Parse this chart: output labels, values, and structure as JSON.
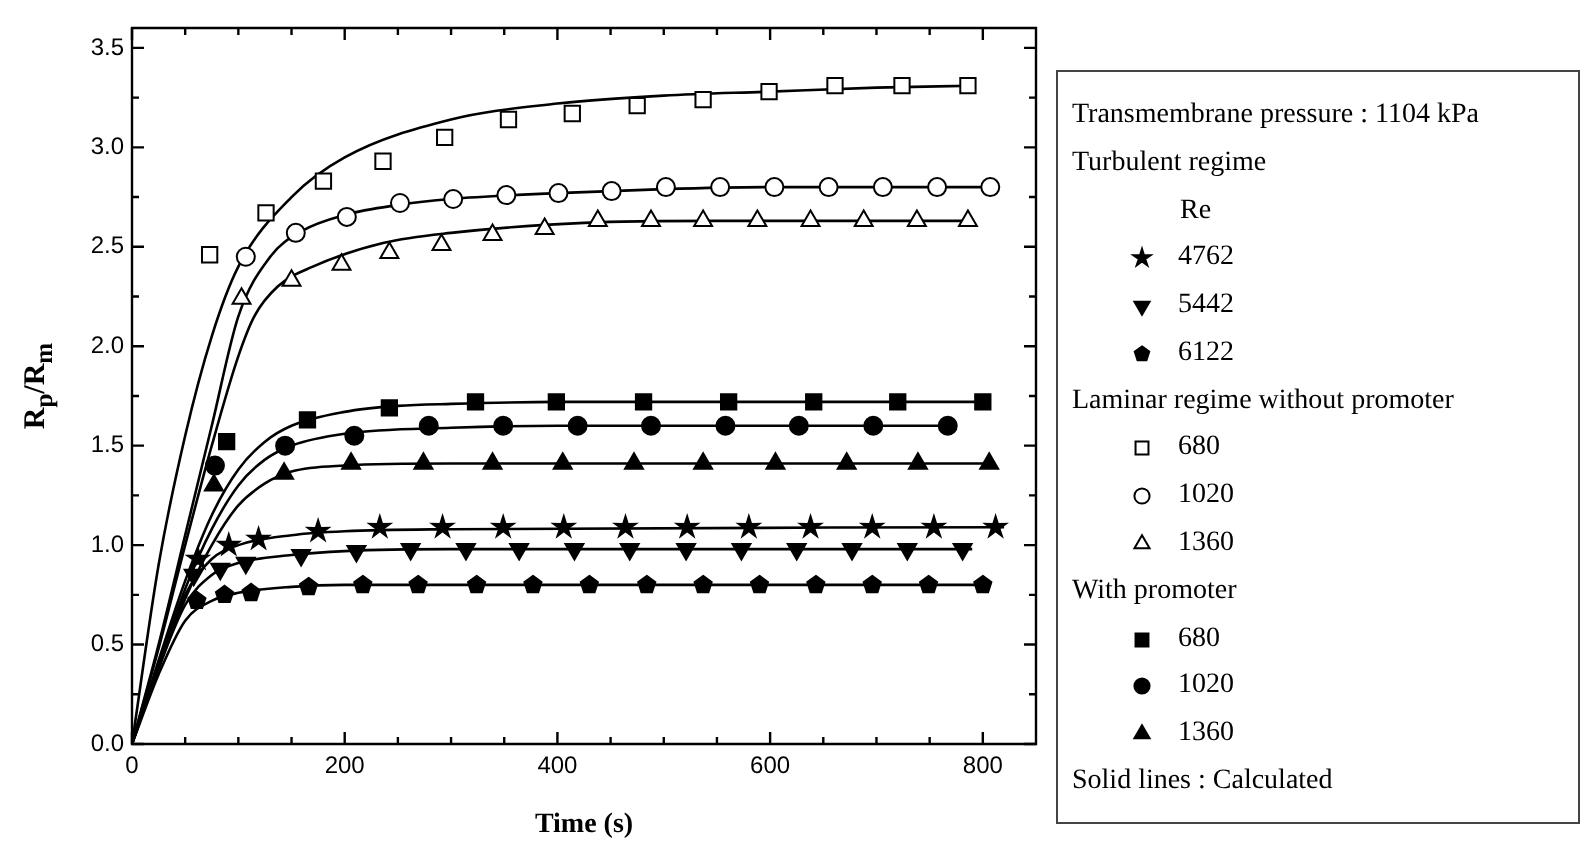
{
  "chart_data": {
    "type": "scatter",
    "xlabel": "Time (s)",
    "ylabel": "R$_{p}$/R$_{m}$",
    "legend_title": "Transmembrane pressure : 1104 kPa",
    "annotations": [
      "Turbulent regime",
      "Re",
      "Laminar regime without promoter",
      "With promoter",
      "Solid lines : Calculated"
    ],
    "xlim": [
      0,
      850
    ],
    "ylim": [
      0,
      3.6
    ],
    "xticks": [
      0,
      {
        "value": 50,
        "label": null
      },
      {
        "value": 100,
        "label": null
      },
      {
        "value": 150,
        "label": null
      },
      200,
      {
        "value": 250,
        "label": null
      },
      {
        "value": 300,
        "label": null
      },
      {
        "value": 350,
        "label": null
      },
      400,
      {
        "value": 450,
        "label": null
      },
      {
        "value": 500,
        "label": null
      },
      {
        "value": 550,
        "label": null
      },
      600,
      {
        "value": 650,
        "label": null
      },
      {
        "value": 700,
        "label": null
      },
      {
        "value": 750,
        "label": null
      },
      800
    ],
    "yticks": [
      {
        "value": 0,
        "label": "0.0"
      },
      {
        "value": 0.25,
        "label": null
      },
      {
        "value": 0.5,
        "label": "0.5"
      },
      {
        "value": 0.75,
        "label": null
      },
      {
        "value": 1,
        "label": "1.0"
      },
      {
        "value": 1.25,
        "label": null
      },
      {
        "value": 1.5,
        "label": "1.5"
      },
      {
        "value": 1.75,
        "label": null
      },
      {
        "value": 2,
        "label": "2.0"
      },
      {
        "value": 2.25,
        "label": null
      },
      {
        "value": 2.5,
        "label": "2.5"
      },
      {
        "value": 2.75,
        "label": null
      },
      {
        "value": 3,
        "label": "3.0"
      },
      {
        "value": 3.25,
        "label": null
      },
      {
        "value": 3.5,
        "label": "3.5"
      }
    ],
    "legend": "right",
    "series": [
      {
        "name": "4762",
        "marker": "star",
        "color": "#000000",
        "x": [
          62,
          91,
          119,
          175,
          233,
          292,
          349,
          406,
          464,
          522,
          580,
          638,
          696,
          754,
          812
        ],
        "values": [
          0.93,
          1.0,
          1.03,
          1.07,
          1.09,
          1.09,
          1.09,
          1.09,
          1.09,
          1.09,
          1.09,
          1.09,
          1.09,
          1.09,
          1.09
        ]
      },
      {
        "name": "5442",
        "marker": "triangle",
        "color": "#000000",
        "x": [
          58,
          83,
          107,
          159,
          211,
          262,
          314,
          364,
          416,
          468,
          521,
          573,
          625,
          677,
          729,
          781
        ],
        "values": [
          0.85,
          0.88,
          0.91,
          0.95,
          0.97,
          0.98,
          0.98,
          0.98,
          0.98,
          0.98,
          0.98,
          0.98,
          0.98,
          0.98,
          0.98,
          0.98
        ]
      },
      {
        "name": "6122",
        "color": "#000000",
        "x": [
          61,
          87,
          112,
          166,
          217,
          269,
          324,
          377,
          430,
          484,
          537,
          590,
          643,
          696,
          749,
          800
        ],
        "values": [
          0.72,
          0.75,
          0.76,
          0.79,
          0.8,
          0.8,
          0.8,
          0.8,
          0.8,
          0.8,
          0.8,
          0.8,
          0.8,
          0.8,
          0.8,
          0.8
        ]
      },
      {
        "name": "680",
        "marker": "square",
        "color": "#000000",
        "x": [
          73,
          126,
          180,
          236,
          294,
          354,
          414,
          475,
          537,
          599,
          661,
          724,
          786
        ],
        "values": [
          2.46,
          2.67,
          2.83,
          2.93,
          3.05,
          3.14,
          3.17,
          3.21,
          3.24,
          3.28,
          3.31,
          3.31,
          3.31
        ]
      },
      {
        "name": "1020",
        "marker": "circle",
        "color": "#000000",
        "x": [
          107,
          154,
          202,
          252,
          302,
          352,
          401,
          451,
          502,
          553,
          604,
          655,
          706,
          757,
          807
        ],
        "values": [
          2.45,
          2.57,
          2.65,
          2.72,
          2.74,
          2.76,
          2.77,
          2.78,
          2.8,
          2.8,
          2.8,
          2.8,
          2.8,
          2.8,
          2.8
        ]
      },
      {
        "name": "1360",
        "marker": "triangle",
        "color": "#000000",
        "x": [
          103,
          150,
          197,
          242,
          291,
          339,
          388,
          438,
          488,
          537,
          588,
          638,
          688,
          738,
          786
        ],
        "values": [
          2.24,
          2.33,
          2.41,
          2.47,
          2.51,
          2.56,
          2.59,
          2.63,
          2.63,
          2.63,
          2.63,
          2.63,
          2.63,
          2.63,
          2.63
        ]
      },
      {
        "name": "680",
        "marker": "square",
        "color": "#000000",
        "x": [
          89,
          165,
          242,
          323,
          399,
          481,
          561,
          641,
          720,
          800
        ],
        "values": [
          1.52,
          1.63,
          1.69,
          1.72,
          1.72,
          1.72,
          1.72,
          1.72,
          1.72,
          1.72
        ]
      },
      {
        "name": "1020",
        "marker": "circle",
        "color": "#000000",
        "x": [
          78,
          144,
          209,
          279,
          349,
          419,
          488,
          558,
          627,
          697,
          767
        ],
        "values": [
          1.4,
          1.5,
          1.55,
          1.6,
          1.6,
          1.6,
          1.6,
          1.6,
          1.6,
          1.6,
          1.6
        ]
      },
      {
        "name": "1360",
        "marker": "triangle",
        "color": "#000000",
        "x": [
          77,
          143,
          206,
          274,
          339,
          405,
          472,
          537,
          605,
          672,
          739,
          806
        ],
        "values": [
          1.3,
          1.36,
          1.41,
          1.41,
          1.41,
          1.41,
          1.41,
          1.41,
          1.41,
          1.41,
          1.41,
          1.41
        ]
      },
      {
        "type": "line",
        "color": "#000000",
        "x": [
          0,
          25,
          50,
          75,
          100,
          150,
          200,
          300,
          820
        ],
        "values": [
          0,
          0.4,
          0.75,
          0.93,
          1.0,
          1.05,
          1.07,
          1.08,
          1.09
        ]
      },
      {
        "type": "line",
        "color": "#000000",
        "x": [
          0,
          25,
          50,
          75,
          100,
          150,
          200,
          300,
          790
        ],
        "values": [
          0,
          0.38,
          0.7,
          0.85,
          0.91,
          0.95,
          0.97,
          0.98,
          0.98
        ]
      },
      {
        "type": "line",
        "color": "#000000",
        "x": [
          0,
          25,
          50,
          75,
          100,
          150,
          200,
          800
        ],
        "values": [
          0,
          0.35,
          0.62,
          0.72,
          0.76,
          0.79,
          0.8,
          0.8
        ]
      },
      {
        "type": "line",
        "color": "#000000",
        "x": [
          0,
          25,
          50,
          75,
          100,
          150,
          200,
          300,
          400,
          500,
          600,
          700,
          790
        ],
        "values": [
          0,
          0.9,
          1.55,
          2.05,
          2.4,
          2.75,
          2.95,
          3.14,
          3.22,
          3.26,
          3.28,
          3.3,
          3.31
        ]
      },
      {
        "type": "line",
        "color": "#000000",
        "x": [
          0,
          25,
          50,
          75,
          100,
          130,
          160,
          200,
          250,
          300,
          400,
          500,
          600,
          810
        ],
        "values": [
          0,
          0.5,
          1.05,
          1.6,
          2.15,
          2.45,
          2.58,
          2.66,
          2.71,
          2.74,
          2.77,
          2.79,
          2.8,
          2.8
        ]
      },
      {
        "type": "line",
        "color": "#000000",
        "x": [
          0,
          25,
          50,
          75,
          100,
          115,
          137,
          170,
          237,
          300,
          425,
          550,
          790
        ],
        "values": [
          0,
          0.48,
          1.0,
          1.5,
          1.95,
          2.15,
          2.3,
          2.4,
          2.52,
          2.57,
          2.62,
          2.63,
          2.63
        ]
      },
      {
        "type": "line",
        "color": "#000000",
        "x": [
          0,
          25,
          50,
          75,
          100,
          125,
          150,
          200,
          250,
          300,
          400,
          800
        ],
        "values": [
          0,
          0.42,
          0.82,
          1.15,
          1.38,
          1.52,
          1.6,
          1.67,
          1.7,
          1.71,
          1.72,
          1.72
        ]
      },
      {
        "type": "line",
        "color": "#000000",
        "x": [
          0,
          25,
          50,
          75,
          100,
          125,
          150,
          200,
          300,
          400,
          770
        ],
        "values": [
          0,
          0.4,
          0.78,
          1.08,
          1.3,
          1.43,
          1.5,
          1.56,
          1.59,
          1.6,
          1.6
        ]
      },
      {
        "type": "line",
        "color": "#000000",
        "x": [
          0,
          25,
          50,
          75,
          100,
          125,
          150,
          200,
          300,
          810
        ],
        "values": [
          0,
          0.38,
          0.73,
          1.0,
          1.2,
          1.31,
          1.37,
          1.4,
          1.41,
          1.41
        ]
      }
    ]
  }
}
